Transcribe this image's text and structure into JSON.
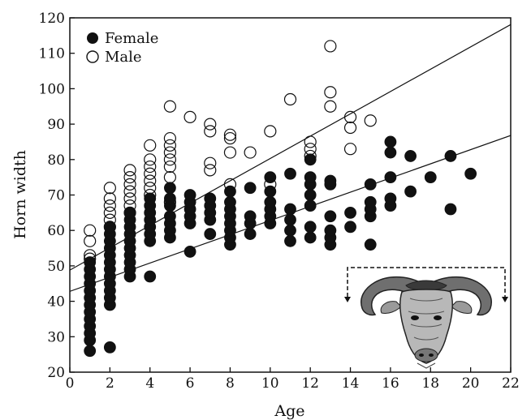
{
  "chart_data": {
    "type": "scatter",
    "xlabel": "Age",
    "ylabel": "Horn width",
    "xlim": [
      0,
      22
    ],
    "ylim": [
      20,
      120
    ],
    "xticks": [
      0,
      2,
      4,
      6,
      8,
      10,
      12,
      14,
      16,
      18,
      20,
      22
    ],
    "yticks": [
      20,
      30,
      40,
      50,
      60,
      70,
      80,
      90,
      100,
      110,
      120
    ],
    "grid": false,
    "legend": "top-left",
    "series": [
      {
        "name": "Female",
        "marker": "filled-circle",
        "color": "#111111",
        "points": [
          [
            1,
            26
          ],
          [
            1,
            29
          ],
          [
            1,
            31
          ],
          [
            1,
            33
          ],
          [
            1,
            35
          ],
          [
            1,
            37
          ],
          [
            1,
            39
          ],
          [
            1,
            41
          ],
          [
            1,
            43
          ],
          [
            1,
            45
          ],
          [
            1,
            47
          ],
          [
            1,
            49
          ],
          [
            1,
            51
          ],
          [
            2,
            27
          ],
          [
            2,
            39
          ],
          [
            2,
            41
          ],
          [
            2,
            43
          ],
          [
            2,
            45
          ],
          [
            2,
            47
          ],
          [
            2,
            49
          ],
          [
            2,
            51
          ],
          [
            2,
            53
          ],
          [
            2,
            55
          ],
          [
            2,
            57
          ],
          [
            2,
            59
          ],
          [
            2,
            61
          ],
          [
            3,
            47
          ],
          [
            3,
            49
          ],
          [
            3,
            51
          ],
          [
            3,
            53
          ],
          [
            3,
            55
          ],
          [
            3,
            57
          ],
          [
            3,
            59
          ],
          [
            3,
            61
          ],
          [
            3,
            63
          ],
          [
            3,
            65
          ],
          [
            4,
            47
          ],
          [
            4,
            57
          ],
          [
            4,
            59
          ],
          [
            4,
            61
          ],
          [
            4,
            63
          ],
          [
            4,
            65
          ],
          [
            4,
            67
          ],
          [
            4,
            69
          ],
          [
            5,
            58
          ],
          [
            5,
            60
          ],
          [
            5,
            62
          ],
          [
            5,
            64
          ],
          [
            5,
            67
          ],
          [
            5,
            69
          ],
          [
            5,
            72
          ],
          [
            6,
            54
          ],
          [
            6,
            62
          ],
          [
            6,
            64
          ],
          [
            6,
            66
          ],
          [
            6,
            68
          ],
          [
            6,
            70
          ],
          [
            7,
            59
          ],
          [
            7,
            63
          ],
          [
            7,
            65
          ],
          [
            7,
            67
          ],
          [
            7,
            69
          ],
          [
            8,
            56
          ],
          [
            8,
            58
          ],
          [
            8,
            60
          ],
          [
            8,
            62
          ],
          [
            8,
            64
          ],
          [
            8,
            66
          ],
          [
            8,
            68
          ],
          [
            8,
            71
          ],
          [
            9,
            59
          ],
          [
            9,
            62
          ],
          [
            9,
            64
          ],
          [
            9,
            72
          ],
          [
            10,
            62
          ],
          [
            10,
            64
          ],
          [
            10,
            66
          ],
          [
            10,
            68
          ],
          [
            10,
            71
          ],
          [
            10,
            75
          ],
          [
            11,
            57
          ],
          [
            11,
            60
          ],
          [
            11,
            63
          ],
          [
            11,
            66
          ],
          [
            11,
            76
          ],
          [
            12,
            58
          ],
          [
            12,
            61
          ],
          [
            12,
            67
          ],
          [
            12,
            70
          ],
          [
            12,
            73
          ],
          [
            12,
            75
          ],
          [
            12,
            80
          ],
          [
            13,
            56
          ],
          [
            13,
            58
          ],
          [
            13,
            60
          ],
          [
            13,
            64
          ],
          [
            13,
            73
          ],
          [
            13,
            74
          ],
          [
            14,
            61
          ],
          [
            14,
            65
          ],
          [
            15,
            56
          ],
          [
            15,
            64
          ],
          [
            15,
            66
          ],
          [
            15,
            68
          ],
          [
            15,
            73
          ],
          [
            16,
            67
          ],
          [
            16,
            69
          ],
          [
            16,
            75
          ],
          [
            16,
            82
          ],
          [
            16,
            85
          ],
          [
            17,
            71
          ],
          [
            17,
            81
          ],
          [
            18,
            75
          ],
          [
            19,
            66
          ],
          [
            19,
            81
          ],
          [
            20,
            76
          ]
        ]
      },
      {
        "name": "Male",
        "marker": "open-circle",
        "color": "#111111",
        "points": [
          [
            1,
            52
          ],
          [
            1,
            53
          ],
          [
            1,
            57
          ],
          [
            1,
            60
          ],
          [
            2,
            61
          ],
          [
            2,
            63
          ],
          [
            2,
            65
          ],
          [
            2,
            67
          ],
          [
            2,
            69
          ],
          [
            2,
            72
          ],
          [
            3,
            65
          ],
          [
            3,
            67
          ],
          [
            3,
            69
          ],
          [
            3,
            71
          ],
          [
            3,
            73
          ],
          [
            3,
            75
          ],
          [
            3,
            77
          ],
          [
            4,
            70
          ],
          [
            4,
            72
          ],
          [
            4,
            74
          ],
          [
            4,
            76
          ],
          [
            4,
            78
          ],
          [
            4,
            80
          ],
          [
            4,
            84
          ],
          [
            5,
            68
          ],
          [
            5,
            75
          ],
          [
            5,
            78
          ],
          [
            5,
            80
          ],
          [
            5,
            82
          ],
          [
            5,
            84
          ],
          [
            5,
            86
          ],
          [
            5,
            95
          ],
          [
            6,
            92
          ],
          [
            7,
            77
          ],
          [
            7,
            79
          ],
          [
            7,
            88
          ],
          [
            7,
            90
          ],
          [
            8,
            73
          ],
          [
            8,
            82
          ],
          [
            8,
            86
          ],
          [
            8,
            87
          ],
          [
            9,
            82
          ],
          [
            10,
            73
          ],
          [
            10,
            88
          ],
          [
            11,
            97
          ],
          [
            12,
            81
          ],
          [
            12,
            83
          ],
          [
            12,
            85
          ],
          [
            13,
            95
          ],
          [
            13,
            99
          ],
          [
            13,
            112
          ],
          [
            14,
            83
          ],
          [
            14,
            89
          ],
          [
            14,
            92
          ],
          [
            15,
            91
          ]
        ]
      }
    ],
    "trend_lines": [
      {
        "series": "Male",
        "slope": 3.15,
        "intercept": 48.8
      },
      {
        "series": "Female",
        "slope": 2.0,
        "intercept": 42.8
      }
    ]
  },
  "illustration": {
    "icon": "buffalo-head-icon"
  }
}
